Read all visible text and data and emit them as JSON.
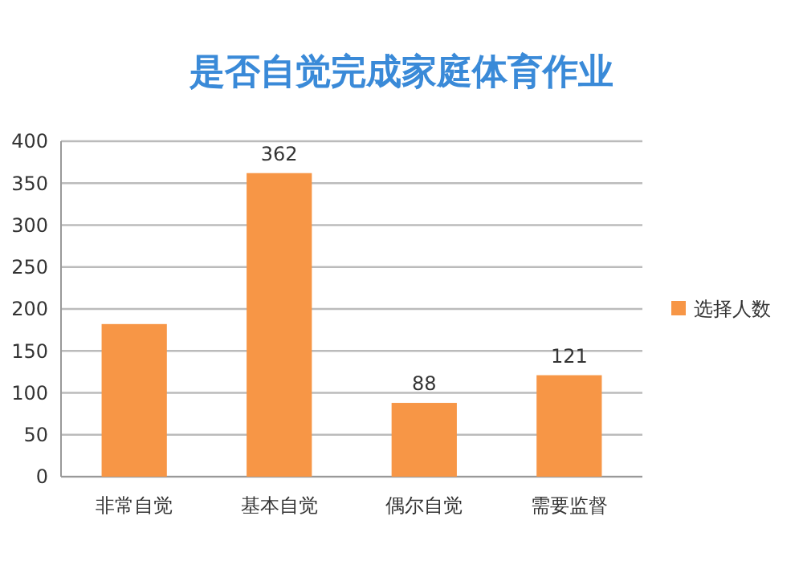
{
  "chart_data": {
    "type": "bar",
    "title": "是否自觉完成家庭体育作业",
    "categories": [
      "非常自觉",
      "基本自觉",
      "偶尔自觉",
      "需要监督"
    ],
    "series": [
      {
        "name": "选择人数",
        "color": "#f79646",
        "values": [
          182,
          362,
          88,
          121
        ],
        "value_labels": [
          null,
          "362",
          "88",
          "121"
        ]
      }
    ],
    "ylim": [
      0,
      400
    ],
    "yticks": [
      0,
      50,
      100,
      150,
      200,
      250,
      300,
      350,
      400
    ],
    "grid": "y",
    "legend": "right"
  }
}
